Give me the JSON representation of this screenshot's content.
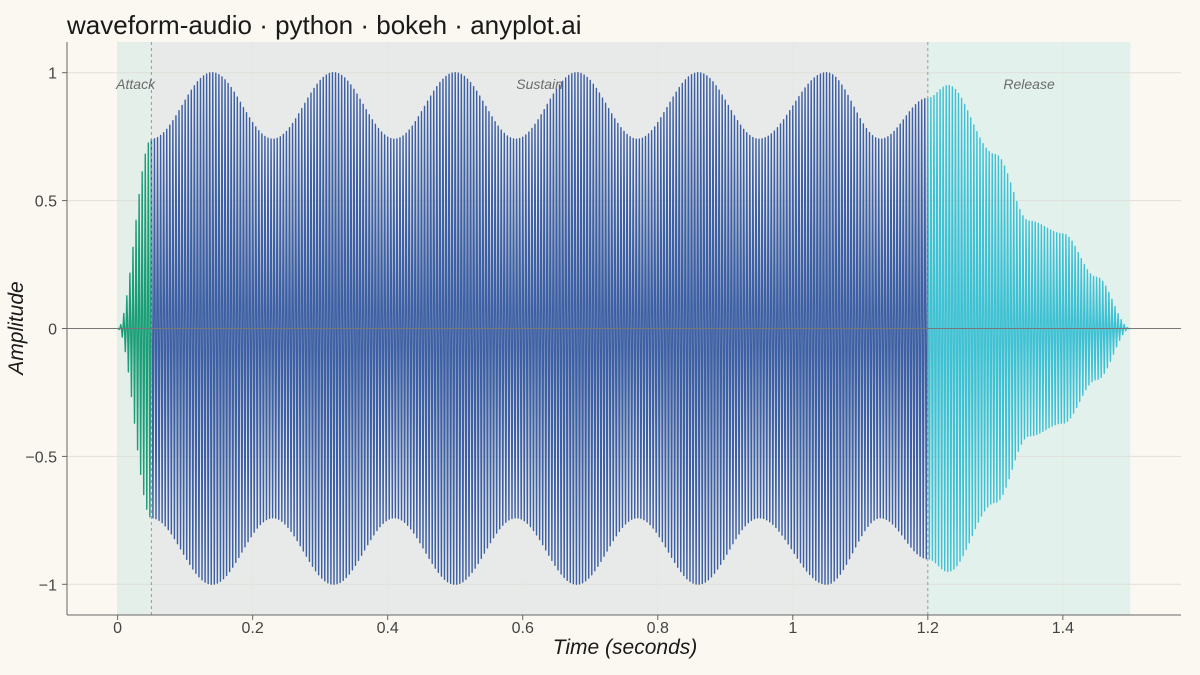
{
  "chart_data": {
    "type": "line",
    "title": "waveform-audio · python · bokeh · anyplot.ai",
    "xlabel": "Time (seconds)",
    "ylabel": "Amplitude",
    "xlim": [
      -0.075,
      1.575
    ],
    "ylim": [
      -1.12,
      1.12
    ],
    "x_ticks": [
      0,
      0.2,
      0.4,
      0.6,
      0.8,
      1.0,
      1.2,
      1.4
    ],
    "x_tick_labels": [
      "0",
      "0.2",
      "0.4",
      "0.6",
      "0.8",
      "1",
      "1.2",
      "1.4"
    ],
    "y_ticks": [
      1,
      0.5,
      0,
      -0.5,
      -1
    ],
    "y_tick_labels": [
      "1",
      "0.5",
      "0",
      "−0.5",
      "−1"
    ],
    "grid": true,
    "zero_line": true,
    "carrier_frequency_hz": 220,
    "tremolo_frequency_hz": 5.5,
    "tremolo_depth": 0.13,
    "phase_boundaries": [
      0.05,
      1.2
    ],
    "regions": [
      {
        "name": "Attack",
        "x_start": 0.0,
        "x_end": 0.05,
        "fill": "#e3efe8",
        "wave_color": "#1a9e77"
      },
      {
        "name": "Sustain",
        "x_start": 0.05,
        "x_end": 1.2,
        "fill": "#e8eae9",
        "wave_color": "#3d5fa3"
      },
      {
        "name": "Release",
        "x_start": 1.2,
        "x_end": 1.5,
        "fill": "#e3f1ed",
        "wave_color": "#3ec1d3"
      }
    ],
    "envelope_peaks": [
      {
        "x": 0.0,
        "y": 0.0
      },
      {
        "x": 0.05,
        "y": 0.74
      },
      {
        "x": 0.14,
        "y": 1.0
      },
      {
        "x": 0.23,
        "y": 0.74
      },
      {
        "x": 0.32,
        "y": 1.0
      },
      {
        "x": 0.41,
        "y": 0.74
      },
      {
        "x": 0.5,
        "y": 1.0
      },
      {
        "x": 0.59,
        "y": 0.74
      },
      {
        "x": 0.68,
        "y": 1.0
      },
      {
        "x": 0.77,
        "y": 0.74
      },
      {
        "x": 0.86,
        "y": 1.0
      },
      {
        "x": 0.95,
        "y": 0.74
      },
      {
        "x": 1.05,
        "y": 1.0
      },
      {
        "x": 1.13,
        "y": 0.74
      },
      {
        "x": 1.2,
        "y": 0.9
      },
      {
        "x": 1.23,
        "y": 0.95
      },
      {
        "x": 1.3,
        "y": 0.68
      },
      {
        "x": 1.35,
        "y": 0.42
      },
      {
        "x": 1.4,
        "y": 0.37
      },
      {
        "x": 1.45,
        "y": 0.2
      },
      {
        "x": 1.5,
        "y": 0.0
      }
    ]
  }
}
